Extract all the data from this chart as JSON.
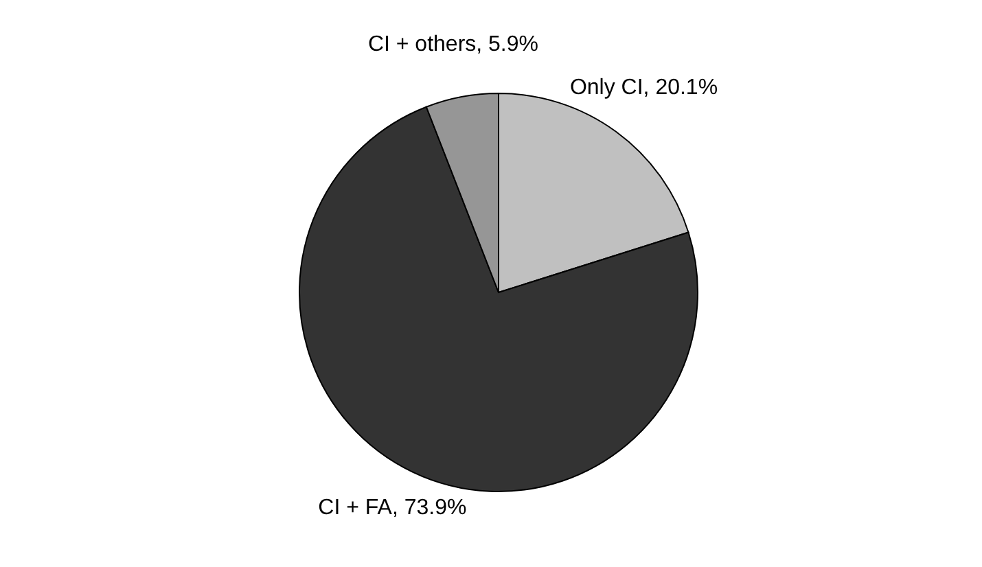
{
  "chart_data": {
    "type": "pie",
    "categories": [
      "Only CI",
      "CI + FA",
      "CI + others"
    ],
    "values": [
      20.1,
      73.9,
      5.9
    ],
    "colors": [
      "#c0c0c0",
      "#333333",
      "#969696"
    ],
    "value_labels": [
      "20.1%",
      "73.9%",
      "5.9%"
    ],
    "legend": false
  }
}
